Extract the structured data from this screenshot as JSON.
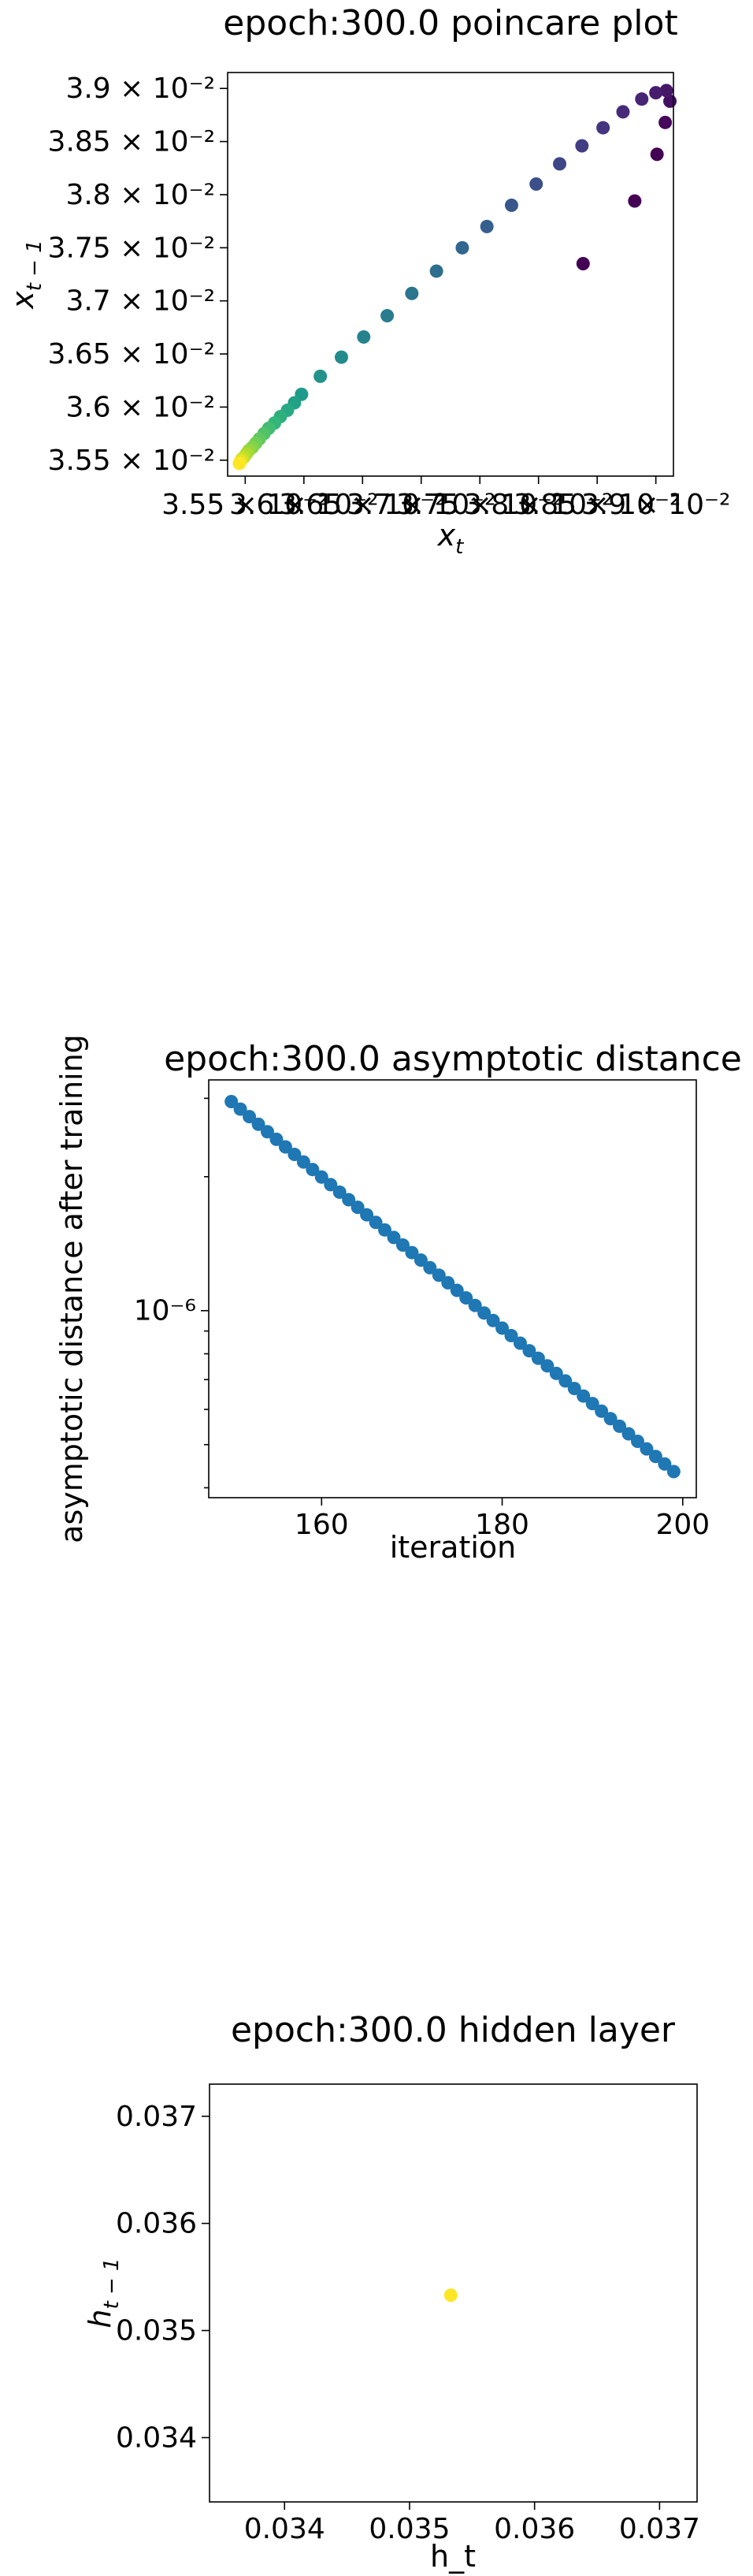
{
  "chart_data": [
    {
      "type": "scatter",
      "title": "epoch:300.0 poincare plot",
      "xlabel": "x",
      "xlabel_sub": "t",
      "ylabel": "x",
      "ylabel_sub": "t − 1",
      "xlim": [
        0.03535,
        0.03915
      ],
      "ylim": [
        0.03535,
        0.03915
      ],
      "grid": false,
      "color_scale": "viridis",
      "x_ticks": [
        0.0355,
        0.036,
        0.0365,
        0.037,
        0.0375,
        0.038,
        0.0385,
        0.039
      ],
      "x_tick_labels": [
        "3.55 × 10⁻²",
        "3.6 × 10⁻²",
        "3.65 × 10⁻²",
        "3.7 × 10⁻²",
        "3.75 × 10⁻²",
        "3.8 × 10⁻²",
        "3.85 × 10⁻²",
        "3.9 × 10⁻²"
      ],
      "y_ticks": [
        0.0355,
        0.036,
        0.0365,
        0.037,
        0.0375,
        0.038,
        0.0385,
        0.039
      ],
      "y_tick_labels": [
        "3.55 × 10⁻²",
        "3.6 × 10⁻²",
        "3.65 × 10⁻²",
        "3.7 × 10⁻²",
        "3.75 × 10⁻²",
        "3.8 × 10⁻²",
        "3.85 × 10⁻²",
        "3.9 × 10⁻²"
      ],
      "points": [
        {
          "x": 0.03838,
          "y": 0.03735,
          "c": 0.0
        },
        {
          "x": 0.03882,
          "y": 0.03794,
          "c": 0.0
        },
        {
          "x": 0.03901,
          "y": 0.03838,
          "c": 0.0
        },
        {
          "x": 0.03908,
          "y": 0.03868,
          "c": 0.02
        },
        {
          "x": 0.03912,
          "y": 0.03888,
          "c": 0.04
        },
        {
          "x": 0.03909,
          "y": 0.03898,
          "c": 0.06
        },
        {
          "x": 0.039,
          "y": 0.03896,
          "c": 0.08
        },
        {
          "x": 0.03888,
          "y": 0.0389,
          "c": 0.1
        },
        {
          "x": 0.03872,
          "y": 0.03878,
          "c": 0.12
        },
        {
          "x": 0.03855,
          "y": 0.03863,
          "c": 0.15
        },
        {
          "x": 0.03837,
          "y": 0.03846,
          "c": 0.18
        },
        {
          "x": 0.03818,
          "y": 0.03829,
          "c": 0.21
        },
        {
          "x": 0.03798,
          "y": 0.0381,
          "c": 0.24
        },
        {
          "x": 0.03777,
          "y": 0.0379,
          "c": 0.27
        },
        {
          "x": 0.03756,
          "y": 0.0377,
          "c": 0.3
        },
        {
          "x": 0.03735,
          "y": 0.0375,
          "c": 0.33
        },
        {
          "x": 0.03713,
          "y": 0.03728,
          "c": 0.36
        },
        {
          "x": 0.03692,
          "y": 0.03707,
          "c": 0.39
        },
        {
          "x": 0.03671,
          "y": 0.03686,
          "c": 0.42
        },
        {
          "x": 0.03651,
          "y": 0.03666,
          "c": 0.45
        },
        {
          "x": 0.03632,
          "y": 0.03647,
          "c": 0.48
        },
        {
          "x": 0.03614,
          "y": 0.03629,
          "c": 0.51
        },
        {
          "x": 0.03598,
          "y": 0.03612,
          "c": 0.54
        },
        {
          "x": 0.03592,
          "y": 0.03604,
          "c": 0.57
        },
        {
          "x": 0.03586,
          "y": 0.03597,
          "c": 0.6
        },
        {
          "x": 0.0358,
          "y": 0.03591,
          "c": 0.63
        },
        {
          "x": 0.03575,
          "y": 0.03585,
          "c": 0.66
        },
        {
          "x": 0.0357,
          "y": 0.0358,
          "c": 0.69
        },
        {
          "x": 0.03566,
          "y": 0.03575,
          "c": 0.72
        },
        {
          "x": 0.03562,
          "y": 0.0357,
          "c": 0.75
        },
        {
          "x": 0.03559,
          "y": 0.03566,
          "c": 0.78
        },
        {
          "x": 0.03556,
          "y": 0.03562,
          "c": 0.81
        },
        {
          "x": 0.03553,
          "y": 0.03559,
          "c": 0.84
        },
        {
          "x": 0.03551,
          "y": 0.03556,
          "c": 0.87
        },
        {
          "x": 0.03549,
          "y": 0.03553,
          "c": 0.9
        },
        {
          "x": 0.03547,
          "y": 0.03551,
          "c": 0.93
        },
        {
          "x": 0.03546,
          "y": 0.03549,
          "c": 0.96
        },
        {
          "x": 0.03545,
          "y": 0.03547,
          "c": 1.0
        }
      ]
    },
    {
      "type": "scatter",
      "title": "epoch:300.0 asymptotic distance",
      "xlabel": "iteration",
      "ylabel": "asymptotic distance after training",
      "xscale": "linear",
      "yscale": "log",
      "xlim": [
        147.5,
        201.5
      ],
      "ylim": [
        3.8e-07,
        3.3e-06
      ],
      "grid": false,
      "point_color": "#1f77b4",
      "x_ticks": [
        160,
        180,
        200
      ],
      "x_tick_labels": [
        "160",
        "180",
        "200"
      ],
      "y_major_ticks": [
        1e-06
      ],
      "y_major_tick_labels": [
        "10⁻⁶"
      ],
      "y_minor_ticks": [
        4e-07,
        5e-07,
        6e-07,
        7e-07,
        8e-07,
        9e-07,
        2e-06,
        3e-06
      ],
      "x": [
        150,
        151,
        152,
        153,
        154,
        155,
        156,
        157,
        158,
        159,
        160,
        161,
        162,
        163,
        164,
        165,
        166,
        167,
        168,
        169,
        170,
        171,
        172,
        173,
        174,
        175,
        176,
        177,
        178,
        179,
        180,
        181,
        182,
        183,
        184,
        185,
        186,
        187,
        188,
        189,
        190,
        191,
        192,
        193,
        194,
        195,
        196,
        197,
        198,
        199
      ],
      "y_first": 2.95e-06,
      "y_last": 4.35e-07
    },
    {
      "type": "scatter",
      "title": "epoch:300.0 hidden layer",
      "xlabel": "h_t",
      "ylabel": "h",
      "ylabel_sub": "t − 1",
      "xlim": [
        0.0334,
        0.0373
      ],
      "ylim": [
        0.0334,
        0.0373
      ],
      "grid": false,
      "point_color": "#fde725",
      "x_ticks": [
        0.034,
        0.035,
        0.036,
        0.037
      ],
      "x_tick_labels": [
        "0.034",
        "0.035",
        "0.036",
        "0.037"
      ],
      "y_ticks": [
        0.034,
        0.035,
        0.036,
        0.037
      ],
      "y_tick_labels": [
        "0.034",
        "0.035",
        "0.036",
        "0.037"
      ],
      "points": [
        {
          "x": 0.03533,
          "y": 0.03533
        }
      ]
    }
  ]
}
